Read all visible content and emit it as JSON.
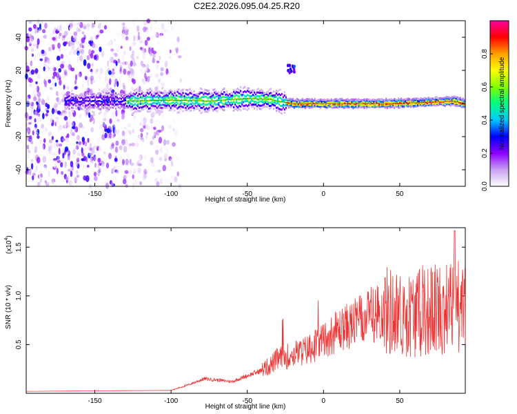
{
  "title": "C2E2.2026.095.04.25.R20",
  "chart_data": [
    {
      "type": "heatmap",
      "xlabel": "Height of straight line (km)",
      "ylabel": "Frequency (Hz)",
      "xlim": [
        -195,
        93
      ],
      "ylim": [
        -50,
        50
      ],
      "xticks": [
        -150,
        -100,
        -50,
        0,
        50
      ],
      "yticks": [
        -40,
        -20,
        0,
        20,
        40
      ],
      "colorbar": {
        "label": "Normalized spectral amplitude",
        "range": [
          0,
          1
        ],
        "ticks": [
          "0.0",
          "0.2",
          "0.4",
          "0.6",
          "0.8"
        ],
        "colors": [
          "#ffffff",
          "#c8a0f0",
          "#8c00ff",
          "#0000ff",
          "#00c8ff",
          "#00ff80",
          "#80ff00",
          "#ffff00",
          "#ffa000",
          "#ff0000",
          "#ff00a0"
        ]
      },
      "ridge": [
        {
          "x": -130,
          "f": 1.5
        },
        {
          "x": -100,
          "f": 2
        },
        {
          "x": -75,
          "f": 1.5
        },
        {
          "x": -50,
          "f": 3
        },
        {
          "x": -35,
          "f": 2.5
        },
        {
          "x": -28,
          "f": 1
        },
        {
          "x": -20,
          "f": 0
        },
        {
          "x": 0,
          "f": 0
        },
        {
          "x": 40,
          "f": 0
        },
        {
          "x": 60,
          "f": 0.5
        },
        {
          "x": 85,
          "f": 1.5
        },
        {
          "x": 93,
          "f": 0
        }
      ],
      "noise_region": {
        "x_from": -195,
        "x_to": -95
      }
    },
    {
      "type": "line",
      "xlabel": "Height of straight line (km)",
      "ylabel": "SNR (10 * v/v)",
      "y_multiplier": "(x10",
      "y_exponent": "4",
      "xlim": [
        -195,
        93
      ],
      "ylim": [
        0,
        1.7
      ],
      "xticks": [
        -150,
        -100,
        -50,
        0,
        50
      ],
      "yticks": [
        "0.5",
        "1.0",
        "1.5"
      ],
      "color": "#ee3333",
      "envelope": [
        {
          "x": -195,
          "y": 0.02
        },
        {
          "x": -100,
          "y": 0.03
        },
        {
          "x": -90,
          "y": 0.08
        },
        {
          "x": -78,
          "y": 0.15
        },
        {
          "x": -60,
          "y": 0.12
        },
        {
          "x": -50,
          "y": 0.18
        },
        {
          "x": -38,
          "y": 0.25
        },
        {
          "x": -30,
          "y": 0.35
        },
        {
          "x": -20,
          "y": 0.4
        },
        {
          "x": -10,
          "y": 0.45
        },
        {
          "x": 0,
          "y": 0.55
        },
        {
          "x": 10,
          "y": 0.65
        },
        {
          "x": 25,
          "y": 0.75
        },
        {
          "x": 40,
          "y": 0.85
        },
        {
          "x": 55,
          "y": 0.8
        },
        {
          "x": 70,
          "y": 0.85
        },
        {
          "x": 85,
          "y": 0.9
        },
        {
          "x": 93,
          "y": 0.9
        }
      ],
      "peak": {
        "x": 86,
        "y": 1.67
      }
    }
  ]
}
